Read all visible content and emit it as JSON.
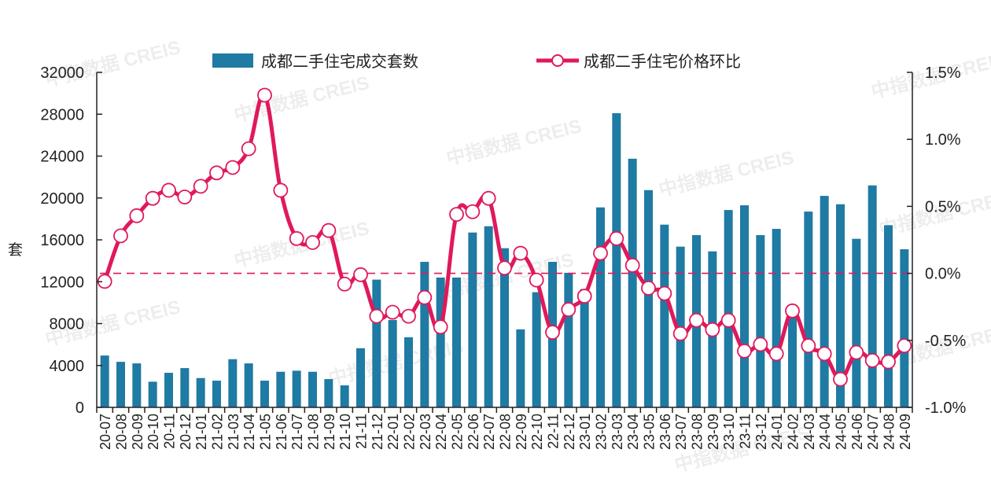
{
  "chart_data": {
    "type": "bar+line",
    "title": "",
    "categories": [
      "20-07",
      "20-08",
      "20-09",
      "20-10",
      "20-11",
      "20-12",
      "21-01",
      "21-02",
      "21-03",
      "21-04",
      "21-05",
      "21-06",
      "21-07",
      "21-08",
      "21-09",
      "21-10",
      "21-11",
      "21-12",
      "22-01",
      "22-02",
      "22-03",
      "22-04",
      "22-05",
      "22-06",
      "22-07",
      "22-08",
      "22-09",
      "22-10",
      "22-11",
      "22-12",
      "23-01",
      "23-02",
      "23-03",
      "23-04",
      "23-05",
      "23-06",
      "23-07",
      "23-08",
      "23-09",
      "23-10",
      "23-11",
      "23-12",
      "24-01",
      "24-02",
      "24-03",
      "24-04",
      "24-05",
      "24-06",
      "24-07",
      "24-08",
      "24-09"
    ],
    "series": [
      {
        "name": "成都二手住宅成交套数",
        "type": "bar",
        "axis": "left",
        "color": "#1f7aa4",
        "values": [
          4950,
          4350,
          4200,
          2450,
          3300,
          3750,
          2800,
          2550,
          4600,
          4200,
          2550,
          3400,
          3500,
          3400,
          2700,
          2100,
          5650,
          12200,
          8350,
          6700,
          13900,
          12400,
          12400,
          16700,
          17300,
          15200,
          7450,
          11000,
          13900,
          12850,
          11300,
          19100,
          28100,
          23750,
          20750,
          17450,
          15350,
          16450,
          14900,
          18850,
          19300,
          16450,
          17050,
          8900,
          18700,
          20200,
          19400,
          16100,
          21200,
          17400,
          15100
        ]
      },
      {
        "name": "成都二手住宅价格环比",
        "type": "line",
        "axis": "right",
        "unit": "%",
        "color": "#e0195a",
        "values": [
          -0.06,
          0.28,
          0.43,
          0.56,
          0.62,
          0.57,
          0.65,
          0.75,
          0.79,
          0.93,
          1.33,
          0.62,
          0.26,
          0.23,
          0.32,
          -0.08,
          -0.01,
          -0.32,
          -0.29,
          -0.32,
          -0.18,
          -0.4,
          0.44,
          0.46,
          0.56,
          0.04,
          0.15,
          -0.05,
          -0.44,
          -0.27,
          -0.17,
          0.15,
          0.26,
          0.06,
          -0.11,
          -0.15,
          -0.45,
          -0.35,
          -0.42,
          -0.35,
          -0.58,
          -0.53,
          -0.6,
          -0.28,
          -0.54,
          -0.6,
          -0.79,
          -0.59,
          -0.65,
          -0.66,
          -0.54
        ]
      }
    ],
    "xlabel": "",
    "ylabel": "套",
    "ylabel_right": "",
    "ylim": [
      0,
      32000
    ],
    "ylim_right": [
      -1.0,
      1.5
    ],
    "yticks": [
      "0",
      "4000",
      "8000",
      "12000",
      "16000",
      "20000",
      "24000",
      "28000",
      "32000"
    ],
    "yticks_right": [
      "-1.0%",
      "-0.5%",
      "0.0%",
      "0.5%",
      "1.0%",
      "1.5%"
    ],
    "reference_line": {
      "axis": "right",
      "value": 0.0,
      "style": "dashed",
      "color": "#e0195a"
    },
    "grid": false,
    "legend_position": "top"
  },
  "legend": {
    "bar_label": "成都二手住宅成交套数",
    "line_label": "成都二手住宅价格环比"
  },
  "axis": {
    "left_title": "套"
  },
  "watermark": "中指数据 CREIS"
}
